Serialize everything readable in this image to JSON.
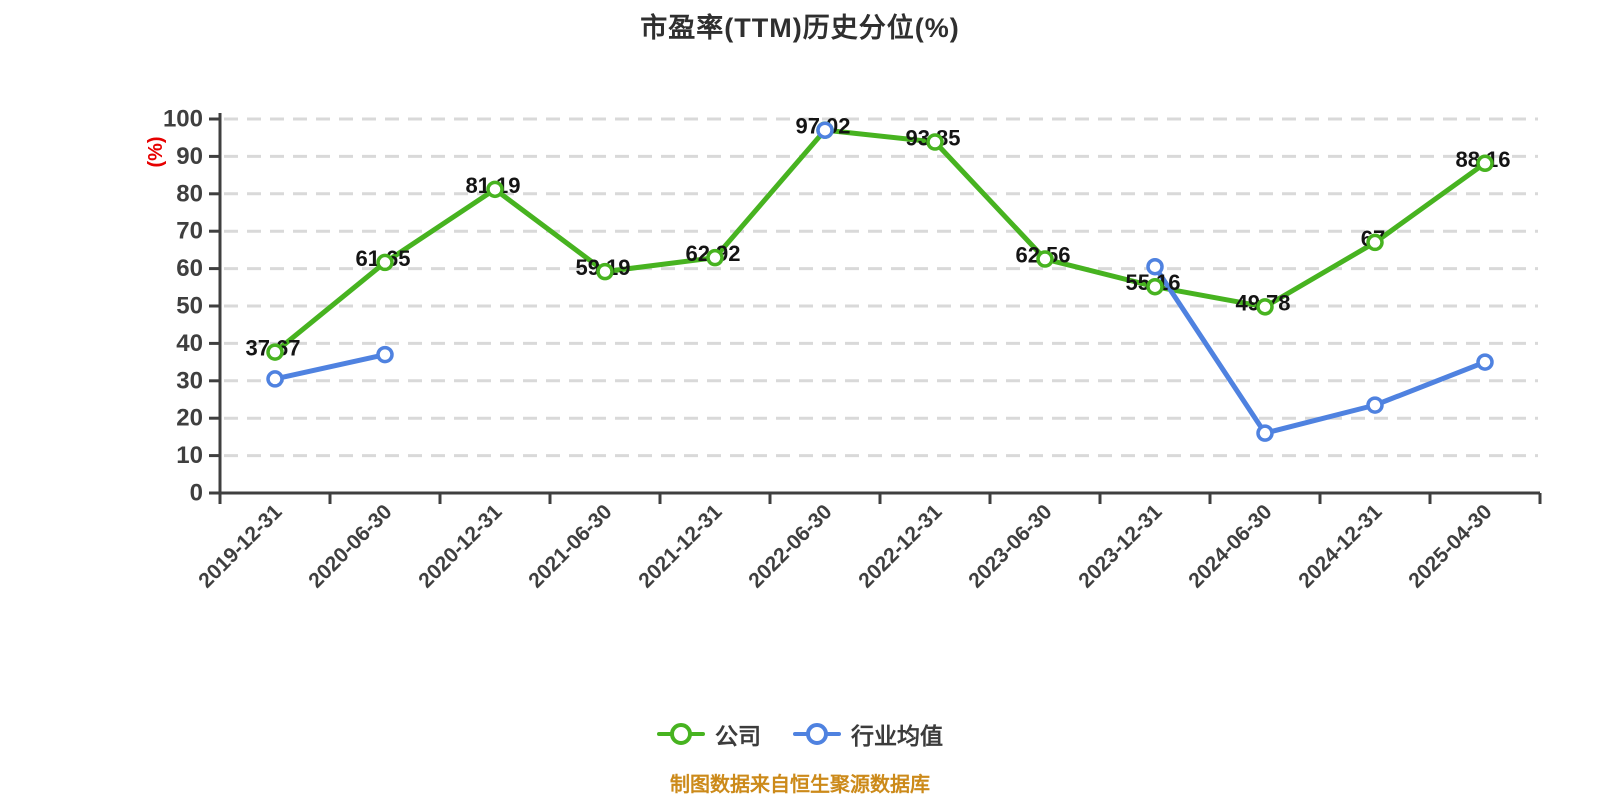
{
  "chart_data": {
    "type": "line",
    "title": "市盈率(TTM)历史分位(%)",
    "y_axis": {
      "name": "(%)",
      "name_color": "#e60000",
      "min": 0,
      "max": 100,
      "tick_step": 10,
      "ticks": [
        0,
        10,
        20,
        30,
        40,
        50,
        60,
        70,
        80,
        90,
        100
      ]
    },
    "categories": [
      "2019-12-31",
      "2020-06-30",
      "2020-12-31",
      "2021-06-30",
      "2021-12-31",
      "2022-06-30",
      "2022-12-31",
      "2023-06-30",
      "2023-12-31",
      "2024-06-30",
      "2024-12-31",
      "2025-04-30"
    ],
    "series": [
      {
        "name": "公司",
        "color": "#47b320",
        "values": [
          37.67,
          61.65,
          81.19,
          59.19,
          62.92,
          97.02,
          93.85,
          62.56,
          55.16,
          49.78,
          67,
          88.16
        ],
        "labels": [
          "37.67",
          "61.65",
          "81.19",
          "59.19",
          "62.92",
          "97.02",
          "93.85",
          "62.56",
          "55.16",
          "49.78",
          "67",
          "88.16"
        ]
      },
      {
        "name": "行业均值",
        "color": "#4f82e0",
        "values": [
          30.5,
          37,
          null,
          null,
          null,
          97,
          null,
          null,
          60.5,
          16,
          23.5,
          35
        ],
        "labels": []
      }
    ],
    "grid": {
      "horizontal_dashed": true
    },
    "legend_position": "bottom"
  },
  "footer": {
    "source_note": "制图数据来自恒生聚源数据库"
  }
}
